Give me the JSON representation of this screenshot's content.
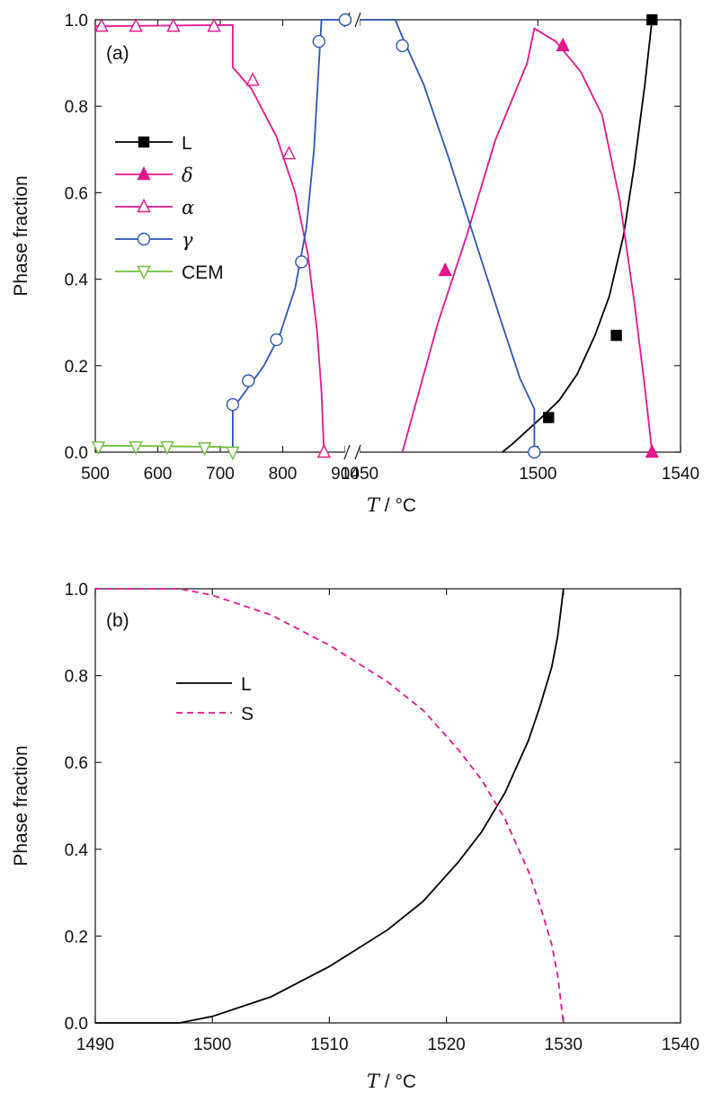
{
  "chart_data": [
    {
      "type": "line",
      "panel_label": "(a)",
      "ylabel": "Phase fraction",
      "xlabel_italic": "T",
      "xlabel_rest": " / °C",
      "ylim": [
        0,
        1
      ],
      "x_axis_break": true,
      "x_segments": [
        {
          "range": [
            500,
            900
          ],
          "ticks": [
            500,
            600,
            700,
            800,
            900
          ]
        },
        {
          "range": [
            1450,
            1540
          ],
          "ticks": [
            1450,
            1500,
            1540
          ]
        }
      ],
      "y_ticks": [
        "0.0",
        "0.2",
        "0.4",
        "0.6",
        "0.8",
        "1.0"
      ],
      "legend_position": "left",
      "series": [
        {
          "name": "L",
          "italic": false,
          "color": "#000000",
          "marker": "square",
          "filled": true,
          "points": [
            [
              1490,
              0
            ],
            [
              1493,
              0.02
            ],
            [
              1497,
              0.05
            ],
            [
              1501,
              0.08
            ],
            [
              1506,
              0.12
            ],
            [
              1511,
              0.18
            ],
            [
              1516,
              0.27
            ],
            [
              1520,
              0.36
            ],
            [
              1524,
              0.5
            ],
            [
              1527,
              0.66
            ],
            [
              1530,
              0.85
            ],
            [
              1532,
              1.0
            ]
          ],
          "markers": [
            [
              1503,
              0.08
            ],
            [
              1522,
              0.27
            ],
            [
              1532,
              1.0
            ]
          ]
        },
        {
          "name": "δ",
          "italic": true,
          "color": "#e5168c",
          "marker": "triangle-up",
          "filled": true,
          "segments": [
            [
              [
                1462,
                0
              ],
              [
                1472,
                0.3
              ],
              [
                1480,
                0.5
              ],
              [
                1488,
                0.72
              ],
              [
                1497,
                0.9
              ],
              [
                1499,
                0.98
              ],
              [
                1505,
                0.95
              ],
              [
                1512,
                0.88
              ],
              [
                1518,
                0.78
              ],
              [
                1523,
                0.58
              ],
              [
                1527,
                0.35
              ],
              [
                1530,
                0.15
              ],
              [
                1532,
                0
              ]
            ]
          ],
          "markers": [
            [
              1474,
              0.42
            ],
            [
              1507,
              0.94
            ],
            [
              1532,
              0.0
            ]
          ]
        },
        {
          "name": "α",
          "italic": true,
          "color": "#e5168c",
          "marker": "triangle-up",
          "filled": false,
          "segments": [
            [
              [
                500,
                0.985
              ],
              [
                720,
                0.988
              ],
              [
                720,
                0.89
              ],
              [
                750,
                0.84
              ],
              [
                790,
                0.73
              ],
              [
                820,
                0.6
              ],
              [
                840,
                0.46
              ],
              [
                855,
                0.28
              ],
              [
                862,
                0.14
              ],
              [
                866,
                0
              ]
            ]
          ],
          "markers": [
            [
              510,
              0.985
            ],
            [
              565,
              0.985
            ],
            [
              625,
              0.985
            ],
            [
              690,
              0.985
            ],
            [
              752,
              0.86
            ],
            [
              810,
              0.69
            ],
            [
              866,
              0.0
            ]
          ]
        },
        {
          "name": "γ",
          "italic": true,
          "color": "#2b55b8",
          "marker": "circle",
          "filled": false,
          "segments": [
            [
              [
                720,
                0
              ],
              [
                720,
                0.1
              ],
              [
                745,
                0.15
              ],
              [
                770,
                0.2
              ],
              [
                795,
                0.27
              ],
              [
                820,
                0.38
              ],
              [
                838,
                0.52
              ],
              [
                850,
                0.7
              ],
              [
                858,
                0.9
              ],
              [
                862,
                1.0
              ],
              [
                900,
                1.0
              ]
            ],
            [
              [
                1450,
                1.0
              ],
              [
                1460,
                1.0
              ],
              [
                1462,
                0.96
              ],
              [
                1468,
                0.85
              ],
              [
                1475,
                0.68
              ],
              [
                1482,
                0.5
              ],
              [
                1489,
                0.32
              ],
              [
                1495,
                0.17
              ],
              [
                1499,
                0.1
              ],
              [
                1499,
                0.0
              ]
            ]
          ],
          "markers": [
            [
              720,
              0.11
            ],
            [
              745,
              0.165
            ],
            [
              790,
              0.26
            ],
            [
              830,
              0.44
            ],
            [
              858,
              0.95
            ],
            [
              900,
              1.0
            ],
            [
              1462,
              0.94
            ],
            [
              1499,
              0.0
            ]
          ]
        },
        {
          "name": "CEM",
          "italic": false,
          "color": "#6fbf3a",
          "marker": "triangle-down",
          "filled": false,
          "segments": [
            [
              [
                500,
                0.015
              ],
              [
                600,
                0.014
              ],
              [
                700,
                0.012
              ],
              [
                720,
                0.01
              ],
              [
                720,
                0
              ]
            ]
          ],
          "markers": [
            [
              505,
              0.012
            ],
            [
              565,
              0.012
            ],
            [
              615,
              0.012
            ],
            [
              675,
              0.01
            ],
            [
              720,
              0.0
            ]
          ]
        }
      ]
    },
    {
      "type": "line",
      "panel_label": "(b)",
      "ylabel": "Phase fraction",
      "xlabel_italic": "T",
      "xlabel_rest": " / °C",
      "xlim": [
        1490,
        1540
      ],
      "ylim": [
        0,
        1
      ],
      "x_ticks": [
        1490,
        1500,
        1510,
        1520,
        1530,
        1540
      ],
      "y_ticks": [
        "0.0",
        "0.2",
        "0.4",
        "0.6",
        "0.8",
        "1.0"
      ],
      "legend_position": "upper-left",
      "series": [
        {
          "name": "L",
          "color": "#000000",
          "style": "solid",
          "points": [
            [
              1490,
              0
            ],
            [
              1497.2,
              0
            ],
            [
              1500,
              0.015
            ],
            [
              1505,
              0.06
            ],
            [
              1510,
              0.13
            ],
            [
              1515,
              0.215
            ],
            [
              1518,
              0.28
            ],
            [
              1521,
              0.37
            ],
            [
              1523,
              0.44
            ],
            [
              1525,
              0.53
            ],
            [
              1527,
              0.65
            ],
            [
              1528,
              0.73
            ],
            [
              1529,
              0.82
            ],
            [
              1529.5,
              0.89
            ],
            [
              1530,
              1.0
            ]
          ]
        },
        {
          "name": "S",
          "color": "#e5168c",
          "style": "dashed",
          "points": [
            [
              1490,
              1.0
            ],
            [
              1497.2,
              1.0
            ],
            [
              1500,
              0.985
            ],
            [
              1505,
              0.94
            ],
            [
              1510,
              0.87
            ],
            [
              1515,
              0.785
            ],
            [
              1518,
              0.72
            ],
            [
              1521,
              0.63
            ],
            [
              1523,
              0.56
            ],
            [
              1525,
              0.47
            ],
            [
              1527,
              0.35
            ],
            [
              1528,
              0.27
            ],
            [
              1529,
              0.18
            ],
            [
              1529.5,
              0.11
            ],
            [
              1530,
              0.0
            ]
          ]
        }
      ]
    }
  ]
}
